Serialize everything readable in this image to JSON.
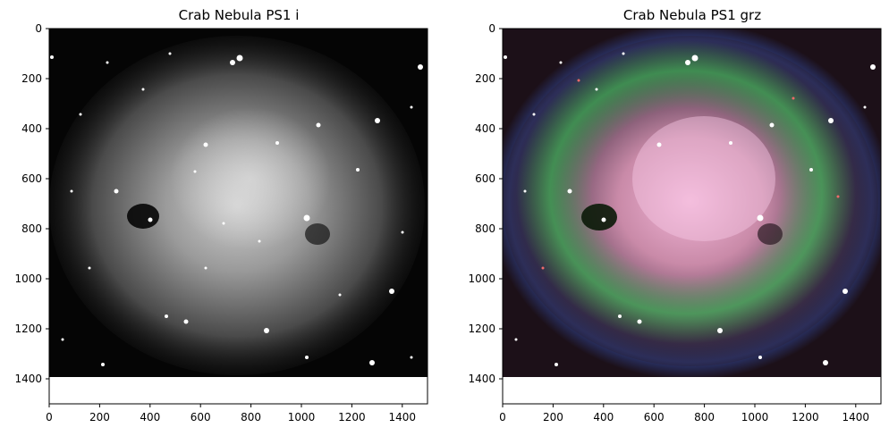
{
  "panels": [
    {
      "id": "left",
      "title": "Crab Nebula PS1 i",
      "colormap": "gray",
      "x_ticks": [
        "0",
        "200",
        "400",
        "600",
        "800",
        "1000",
        "1200",
        "1400"
      ],
      "y_ticks": [
        "0",
        "200",
        "400",
        "600",
        "800",
        "1000",
        "1200",
        "1400"
      ],
      "x_range": [
        0,
        1500
      ],
      "y_range": [
        1500,
        0
      ]
    },
    {
      "id": "right",
      "title": "Crab Nebula PS1 grz",
      "colormap": "rgb",
      "x_ticks": [
        "0",
        "200",
        "400",
        "600",
        "800",
        "1000",
        "1200",
        "1400"
      ],
      "y_ticks": [
        "0",
        "200",
        "400",
        "600",
        "800",
        "1000",
        "1200",
        "1400"
      ],
      "x_range": [
        0,
        1500
      ],
      "y_range": [
        1500,
        0
      ]
    }
  ]
}
